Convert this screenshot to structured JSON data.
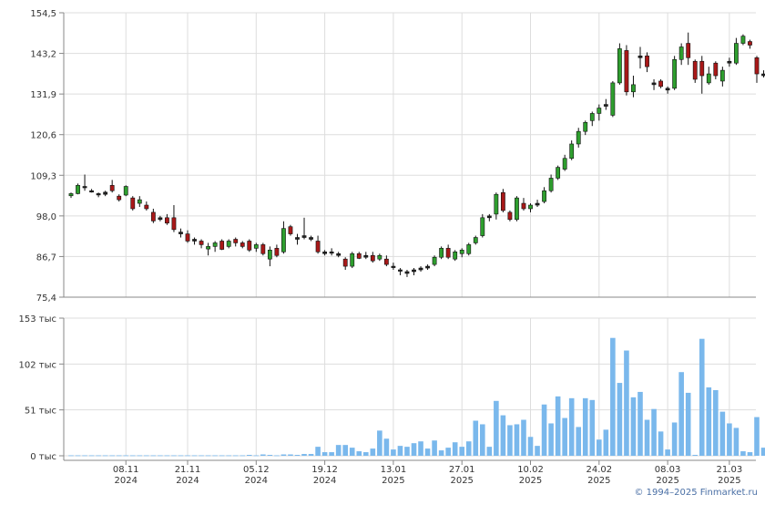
{
  "copyright": "© 1994–2025 Finmarket.ru",
  "colors": {
    "up": "#2e9e2e",
    "down": "#a81818",
    "flat": "#222222",
    "volume": "#7ab8ec",
    "grid": "#dddddd",
    "axis": "#888888"
  },
  "chart_data": [
    {
      "type": "candlestick",
      "title": "",
      "ylim": [
        75.4,
        154.5
      ],
      "y_ticks": [
        "154,5",
        "143,2",
        "131,9",
        "120,6",
        "109,3",
        "98,0",
        "86,7",
        "75,4"
      ],
      "grid": true,
      "candles": [
        [
          103.6,
          104.5,
          103.0,
          104.2
        ],
        [
          104.2,
          107.0,
          104.0,
          106.5
        ],
        [
          106.2,
          109.5,
          105.0,
          106.0
        ],
        [
          105.0,
          105.5,
          104.5,
          104.9
        ],
        [
          104.0,
          104.5,
          103.2,
          104.2
        ],
        [
          104.0,
          105.0,
          103.5,
          104.6
        ],
        [
          106.5,
          108.0,
          104.5,
          105.0
        ],
        [
          103.5,
          104.0,
          102.0,
          102.5
        ],
        [
          103.8,
          106.5,
          103.5,
          106.2
        ],
        [
          103.0,
          103.5,
          99.5,
          100.0
        ],
        [
          101.5,
          103.5,
          100.5,
          102.5
        ],
        [
          101.0,
          102.0,
          99.5,
          100.0
        ],
        [
          99.0,
          100.0,
          96.0,
          96.6
        ],
        [
          97.0,
          98.0,
          96.5,
          97.5
        ],
        [
          97.5,
          98.5,
          95.5,
          96.0
        ],
        [
          97.5,
          101.0,
          93.5,
          94.2
        ],
        [
          93.5,
          94.5,
          92.0,
          93.0
        ],
        [
          93.0,
          94.0,
          90.5,
          91.0
        ],
        [
          91.5,
          92.0,
          90.0,
          91.0
        ],
        [
          91.0,
          91.5,
          89.0,
          90.0
        ],
        [
          88.8,
          90.5,
          87.0,
          89.5
        ],
        [
          89.5,
          91.0,
          88.0,
          90.5
        ],
        [
          91.0,
          91.5,
          88.5,
          88.7
        ],
        [
          89.5,
          91.5,
          89.0,
          91.0
        ],
        [
          91.5,
          92.0,
          89.5,
          90.5
        ],
        [
          90.5,
          91.0,
          89.0,
          89.5
        ],
        [
          91.0,
          91.5,
          88.0,
          88.5
        ],
        [
          89.0,
          90.5,
          88.0,
          90.0
        ],
        [
          90.0,
          90.5,
          87.0,
          87.5
        ],
        [
          86.0,
          89.5,
          84.0,
          88.5
        ],
        [
          89.0,
          90.0,
          86.5,
          87.0
        ],
        [
          88.0,
          96.5,
          87.5,
          94.5
        ],
        [
          95.0,
          95.5,
          92.5,
          93.0
        ],
        [
          92.0,
          93.0,
          90.0,
          91.5
        ],
        [
          92.0,
          97.5,
          91.5,
          92.5
        ],
        [
          92.0,
          92.5,
          91.0,
          91.5
        ],
        [
          91.0,
          92.5,
          87.5,
          88.0
        ],
        [
          88.0,
          88.5,
          87.0,
          87.5
        ],
        [
          88.0,
          89.0,
          87.0,
          87.7
        ],
        [
          87.5,
          88.0,
          86.5,
          87.0
        ],
        [
          86.0,
          86.5,
          83.0,
          84.0
        ],
        [
          84.0,
          88.0,
          83.5,
          87.5
        ],
        [
          87.5,
          88.0,
          86.0,
          86.2
        ],
        [
          87.0,
          88.0,
          86.0,
          86.5
        ],
        [
          87.0,
          88.0,
          85.0,
          85.5
        ],
        [
          86.0,
          87.5,
          85.5,
          87.0
        ],
        [
          86.0,
          87.0,
          84.0,
          84.5
        ],
        [
          84.0,
          85.0,
          83.0,
          84.0
        ],
        [
          83.0,
          83.5,
          81.5,
          82.7
        ],
        [
          82.5,
          83.0,
          81.0,
          82.0
        ],
        [
          82.5,
          83.5,
          81.5,
          83.0
        ],
        [
          83.0,
          84.0,
          82.5,
          83.5
        ],
        [
          83.5,
          84.5,
          83.0,
          84.0
        ],
        [
          84.5,
          87.0,
          84.0,
          86.5
        ],
        [
          86.5,
          89.5,
          86.0,
          89.0
        ],
        [
          89.0,
          90.0,
          86.0,
          86.5
        ],
        [
          86.0,
          88.5,
          85.5,
          88.0
        ],
        [
          87.5,
          89.0,
          86.5,
          88.5
        ],
        [
          87.5,
          90.5,
          87.0,
          90.0
        ],
        [
          90.5,
          92.5,
          90.0,
          92.0
        ],
        [
          92.5,
          98.5,
          92.0,
          97.5
        ],
        [
          97.5,
          98.5,
          96.5,
          98.0
        ],
        [
          98.5,
          104.5,
          97.0,
          104.0
        ],
        [
          104.5,
          105.5,
          99.0,
          99.5
        ],
        [
          99.0,
          99.5,
          96.5,
          97.0
        ],
        [
          97.0,
          103.5,
          96.5,
          103.0
        ],
        [
          101.5,
          103.0,
          99.5,
          100.0
        ],
        [
          100.0,
          101.5,
          99.0,
          101.0
        ],
        [
          101.0,
          102.5,
          100.5,
          101.5
        ],
        [
          102.0,
          106.0,
          101.5,
          105.0
        ],
        [
          105.0,
          109.5,
          104.5,
          108.5
        ],
        [
          108.5,
          112.0,
          108.0,
          111.5
        ],
        [
          111.0,
          115.0,
          110.5,
          114.0
        ],
        [
          114.0,
          119.0,
          113.5,
          118.0
        ],
        [
          118.0,
          122.5,
          117.0,
          121.5
        ],
        [
          121.5,
          124.5,
          120.5,
          124.0
        ],
        [
          124.5,
          127.0,
          123.0,
          126.5
        ],
        [
          126.5,
          129.0,
          124.5,
          128.0
        ],
        [
          129.0,
          130.5,
          127.5,
          128.5
        ],
        [
          126.0,
          135.5,
          125.5,
          135.0
        ],
        [
          135.0,
          146.0,
          134.5,
          144.5
        ],
        [
          144.0,
          145.5,
          131.5,
          132.5
        ],
        [
          132.5,
          137.0,
          131.0,
          134.5
        ],
        [
          142.0,
          145.0,
          139.0,
          142.5
        ],
        [
          142.5,
          143.5,
          138.0,
          139.5
        ],
        [
          134.5,
          136.0,
          133.0,
          135.0
        ],
        [
          135.5,
          136.0,
          133.5,
          134.0
        ],
        [
          133.5,
          134.0,
          132.0,
          133.0
        ],
        [
          133.5,
          142.5,
          133.0,
          141.5
        ],
        [
          141.5,
          146.0,
          140.0,
          145.0
        ],
        [
          146.0,
          149.0,
          140.0,
          142.0
        ],
        [
          141.0,
          141.5,
          135.0,
          136.0
        ],
        [
          141.0,
          142.5,
          132.0,
          137.0
        ],
        [
          135.0,
          139.5,
          134.5,
          137.5
        ],
        [
          140.5,
          141.0,
          136.0,
          137.0
        ],
        [
          135.5,
          139.5,
          134.0,
          138.5
        ],
        [
          140.5,
          142.0,
          139.5,
          141.0
        ],
        [
          140.5,
          147.5,
          140.0,
          146.0
        ],
        [
          146.0,
          148.5,
          145.5,
          148.0
        ],
        [
          146.5,
          147.0,
          144.5,
          145.5
        ],
        [
          142.0,
          142.5,
          135.0,
          137.5
        ],
        [
          137.0,
          138.5,
          136.5,
          137.5
        ]
      ],
      "x_labels": [
        {
          "date": "08.11",
          "year": "2024",
          "index": 8
        },
        {
          "date": "21.11",
          "year": "2024",
          "index": 17
        },
        {
          "date": "05.12",
          "year": "2024",
          "index": 27
        },
        {
          "date": "19.12",
          "year": "2024",
          "index": 37
        },
        {
          "date": "13.01",
          "year": "2025",
          "index": 47
        },
        {
          "date": "27.01",
          "year": "2025",
          "index": 57
        },
        {
          "date": "10.02",
          "year": "2025",
          "index": 67
        },
        {
          "date": "24.02",
          "year": "2025",
          "index": 77
        },
        {
          "date": "08.03",
          "year": "2025",
          "index": 87
        },
        {
          "date": "21.03",
          "year": "2025",
          "index": 96
        }
      ]
    },
    {
      "type": "bar",
      "title": "",
      "ylim": [
        0,
        153
      ],
      "y_ticks": [
        "153 тыс",
        "102 тыс",
        "51 тыс",
        "0 тыс"
      ],
      "grid": true,
      "values": [
        0.5,
        0.5,
        0.5,
        0.5,
        0.5,
        0.5,
        0.5,
        0.5,
        0.5,
        0.5,
        0.5,
        0.5,
        0.5,
        0.5,
        0.5,
        0.5,
        0.5,
        0.5,
        0.5,
        0.5,
        0.5,
        0.5,
        0.5,
        0.5,
        0.5,
        0.5,
        1,
        0.5,
        1.5,
        1,
        0.5,
        1.5,
        1.5,
        1,
        2,
        2,
        10,
        4,
        4,
        12,
        12,
        9,
        5,
        4,
        8,
        28,
        19,
        7,
        11,
        10,
        14,
        16,
        8,
        17,
        6,
        9,
        15,
        10,
        16,
        39,
        35,
        10,
        61,
        45,
        34,
        35,
        40,
        21,
        11,
        57,
        36,
        66,
        42,
        64,
        32,
        64,
        62,
        18,
        29,
        131,
        81,
        117,
        65,
        71,
        40,
        52,
        27,
        7,
        37,
        93,
        70,
        1,
        130,
        76,
        73,
        49,
        36,
        31,
        5,
        4,
        43,
        9
      ]
    }
  ]
}
